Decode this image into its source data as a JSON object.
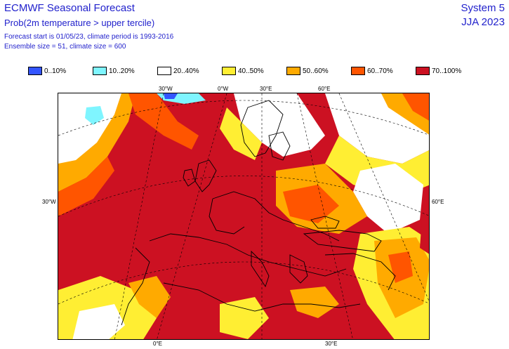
{
  "header": {
    "title": "ECMWF Seasonal Forecast",
    "subtitle": "Prob(2m temperature > upper tercile)",
    "info_line1": "Forecast start is 01/05/23, climate period is 1993-2016",
    "info_line2": "Ensemble size = 51, climate size = 600",
    "system": "System 5",
    "period": "JJA 2023"
  },
  "legend": [
    {
      "label": "0..10%",
      "color": "#3355ff"
    },
    {
      "label": "10..20%",
      "color": "#7ff5ff"
    },
    {
      "label": "20..40%",
      "color": "#ffffff"
    },
    {
      "label": "40..50%",
      "color": "#ffee33"
    },
    {
      "label": "50..60%",
      "color": "#ffaa00"
    },
    {
      "label": "60..70%",
      "color": "#ff5500"
    },
    {
      "label": "70..100%",
      "color": "#cc1122"
    }
  ],
  "map": {
    "ticks_top": [
      "30°W",
      "0°W",
      "30°E",
      "60°E"
    ],
    "tick_left": "30°W",
    "tick_right": "60°E",
    "ticks_bottom": [
      "0°E",
      "30°E"
    ]
  }
}
